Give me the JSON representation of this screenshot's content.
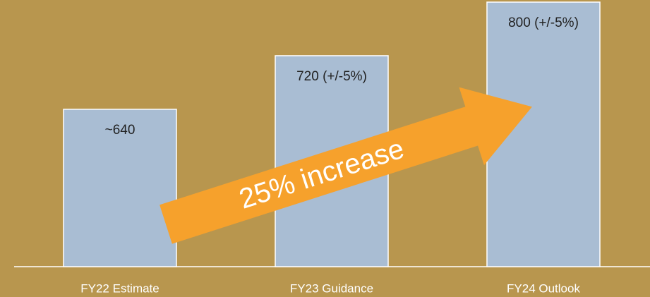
{
  "chart_data": {
    "type": "bar",
    "categories": [
      "FY22 Estimate",
      "FY23 Guidance",
      "FY24 Outlook"
    ],
    "values": [
      640,
      720,
      800
    ],
    "value_labels": [
      "~640",
      "720 (+/-5%)",
      "800 (+/-5%)"
    ],
    "color": "#a9bdd3",
    "ylim": [
      405,
      800
    ],
    "annotation": "25% increase"
  }
}
